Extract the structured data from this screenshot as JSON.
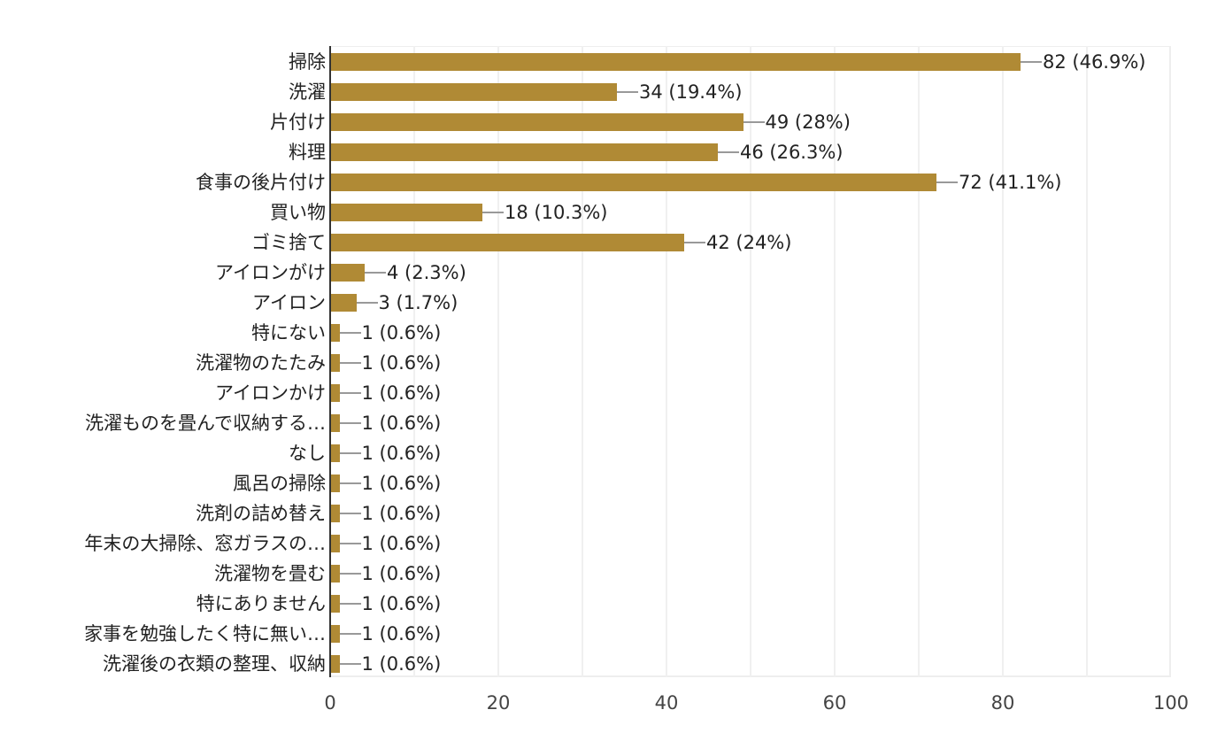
{
  "chart_data": {
    "type": "bar",
    "orientation": "horizontal",
    "title": "",
    "xlabel": "",
    "ylabel": "",
    "xlim": [
      0,
      100
    ],
    "x_ticks": [
      "0",
      "20",
      "40",
      "60",
      "80",
      "100"
    ],
    "grid": true,
    "bar_color": "#b08a35",
    "categories": [
      "掃除",
      "洗濯",
      "片付け",
      "料理",
      "食事の後片付け",
      "買い物",
      "ゴミ捨て",
      "アイロンがけ",
      "アイロン",
      "特にない",
      "洗濯物のたたみ",
      "アイロンかけ",
      "洗濯ものを畳んで収納する…",
      "なし",
      "風呂の掃除",
      "洗剤の詰め替え",
      "年末の大掃除、窓ガラスの…",
      "洗濯物を畳む",
      "特にありません",
      "家事を勉強したく特に無い…",
      "洗濯後の衣類の整理、収納"
    ],
    "values": [
      82,
      34,
      49,
      46,
      72,
      18,
      42,
      4,
      3,
      1,
      1,
      1,
      1,
      1,
      1,
      1,
      1,
      1,
      1,
      1,
      1
    ],
    "value_labels": [
      "82 (46.9%)",
      "34 (19.4%)",
      "49 (28%)",
      "46 (26.3%)",
      "72 (41.1%)",
      "18 (10.3%)",
      "42 (24%)",
      "4 (2.3%)",
      "3 (1.7%)",
      "1 (0.6%)",
      "1 (0.6%)",
      "1 (0.6%)",
      "1 (0.6%)",
      "1 (0.6%)",
      "1 (0.6%)",
      "1 (0.6%)",
      "1 (0.6%)",
      "1 (0.6%)",
      "1 (0.6%)",
      "1 (0.6%)",
      "1 (0.6%)"
    ],
    "legend": []
  }
}
